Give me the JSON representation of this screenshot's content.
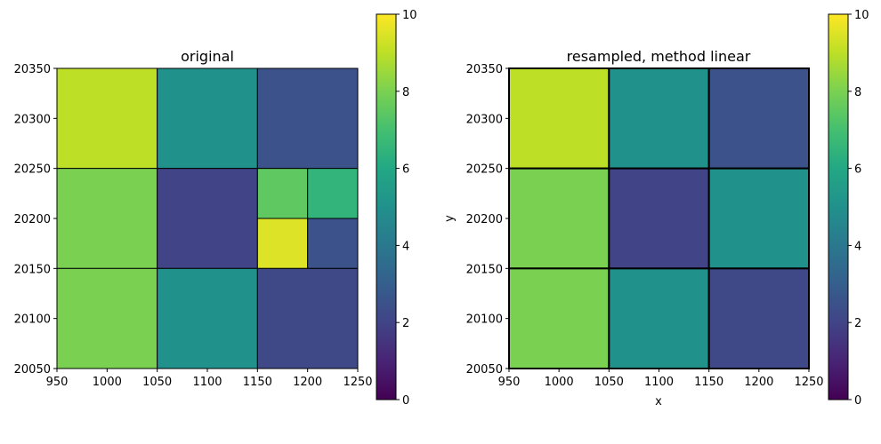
{
  "colorbar": {
    "min": 0,
    "max": 10,
    "ticks": [
      0,
      2,
      4,
      6,
      8,
      10
    ]
  },
  "chart_data": [
    {
      "type": "heatmap",
      "title": "original",
      "xlabel": "",
      "ylabel": "",
      "xlim": [
        950,
        1250
      ],
      "ylim": [
        20050,
        20350
      ],
      "xticks": [
        950,
        1000,
        1050,
        1100,
        1150,
        1200,
        1250
      ],
      "yticks": [
        20050,
        20100,
        20150,
        20200,
        20250,
        20300,
        20350
      ],
      "cells": [
        {
          "x0": 950,
          "x1": 1050,
          "y0": 20250,
          "y1": 20350,
          "value": 9
        },
        {
          "x0": 1050,
          "x1": 1150,
          "y0": 20250,
          "y1": 20350,
          "value": 5
        },
        {
          "x0": 1150,
          "x1": 1250,
          "y0": 20250,
          "y1": 20350,
          "value": 2.5
        },
        {
          "x0": 950,
          "x1": 1050,
          "y0": 20150,
          "y1": 20250,
          "value": 8
        },
        {
          "x0": 1050,
          "x1": 1150,
          "y0": 20150,
          "y1": 20250,
          "value": 2
        },
        {
          "x0": 1150,
          "x1": 1200,
          "y0": 20200,
          "y1": 20250,
          "value": 7.5
        },
        {
          "x0": 1200,
          "x1": 1250,
          "y0": 20200,
          "y1": 20250,
          "value": 6.5
        },
        {
          "x0": 1150,
          "x1": 1200,
          "y0": 20150,
          "y1": 20200,
          "value": 9.5
        },
        {
          "x0": 1200,
          "x1": 1250,
          "y0": 20150,
          "y1": 20200,
          "value": 2.5
        },
        {
          "x0": 950,
          "x1": 1050,
          "y0": 20050,
          "y1": 20150,
          "value": 8
        },
        {
          "x0": 1050,
          "x1": 1150,
          "y0": 20050,
          "y1": 20150,
          "value": 5
        },
        {
          "x0": 1150,
          "x1": 1250,
          "y0": 20050,
          "y1": 20150,
          "value": 2.2
        }
      ],
      "grid": false
    },
    {
      "type": "heatmap",
      "title": "resampled, method linear",
      "xlabel": "x",
      "ylabel": "y",
      "xlim": [
        950,
        1250
      ],
      "ylim": [
        20050,
        20350
      ],
      "xticks": [
        950,
        1000,
        1050,
        1100,
        1150,
        1200,
        1250
      ],
      "yticks": [
        20050,
        20100,
        20150,
        20200,
        20250,
        20300,
        20350
      ],
      "cells": [
        {
          "x0": 950,
          "x1": 1050,
          "y0": 20250,
          "y1": 20350,
          "value": 9
        },
        {
          "x0": 1050,
          "x1": 1150,
          "y0": 20250,
          "y1": 20350,
          "value": 5
        },
        {
          "x0": 1150,
          "x1": 1250,
          "y0": 20250,
          "y1": 20350,
          "value": 2.5
        },
        {
          "x0": 950,
          "x1": 1050,
          "y0": 20150,
          "y1": 20250,
          "value": 8
        },
        {
          "x0": 1050,
          "x1": 1150,
          "y0": 20150,
          "y1": 20250,
          "value": 2
        },
        {
          "x0": 1150,
          "x1": 1250,
          "y0": 20150,
          "y1": 20250,
          "value": 5
        },
        {
          "x0": 950,
          "x1": 1050,
          "y0": 20050,
          "y1": 20150,
          "value": 8
        },
        {
          "x0": 1050,
          "x1": 1150,
          "y0": 20050,
          "y1": 20150,
          "value": 5
        },
        {
          "x0": 1150,
          "x1": 1250,
          "y0": 20050,
          "y1": 20150,
          "value": 2.2
        }
      ],
      "grid": false
    }
  ]
}
